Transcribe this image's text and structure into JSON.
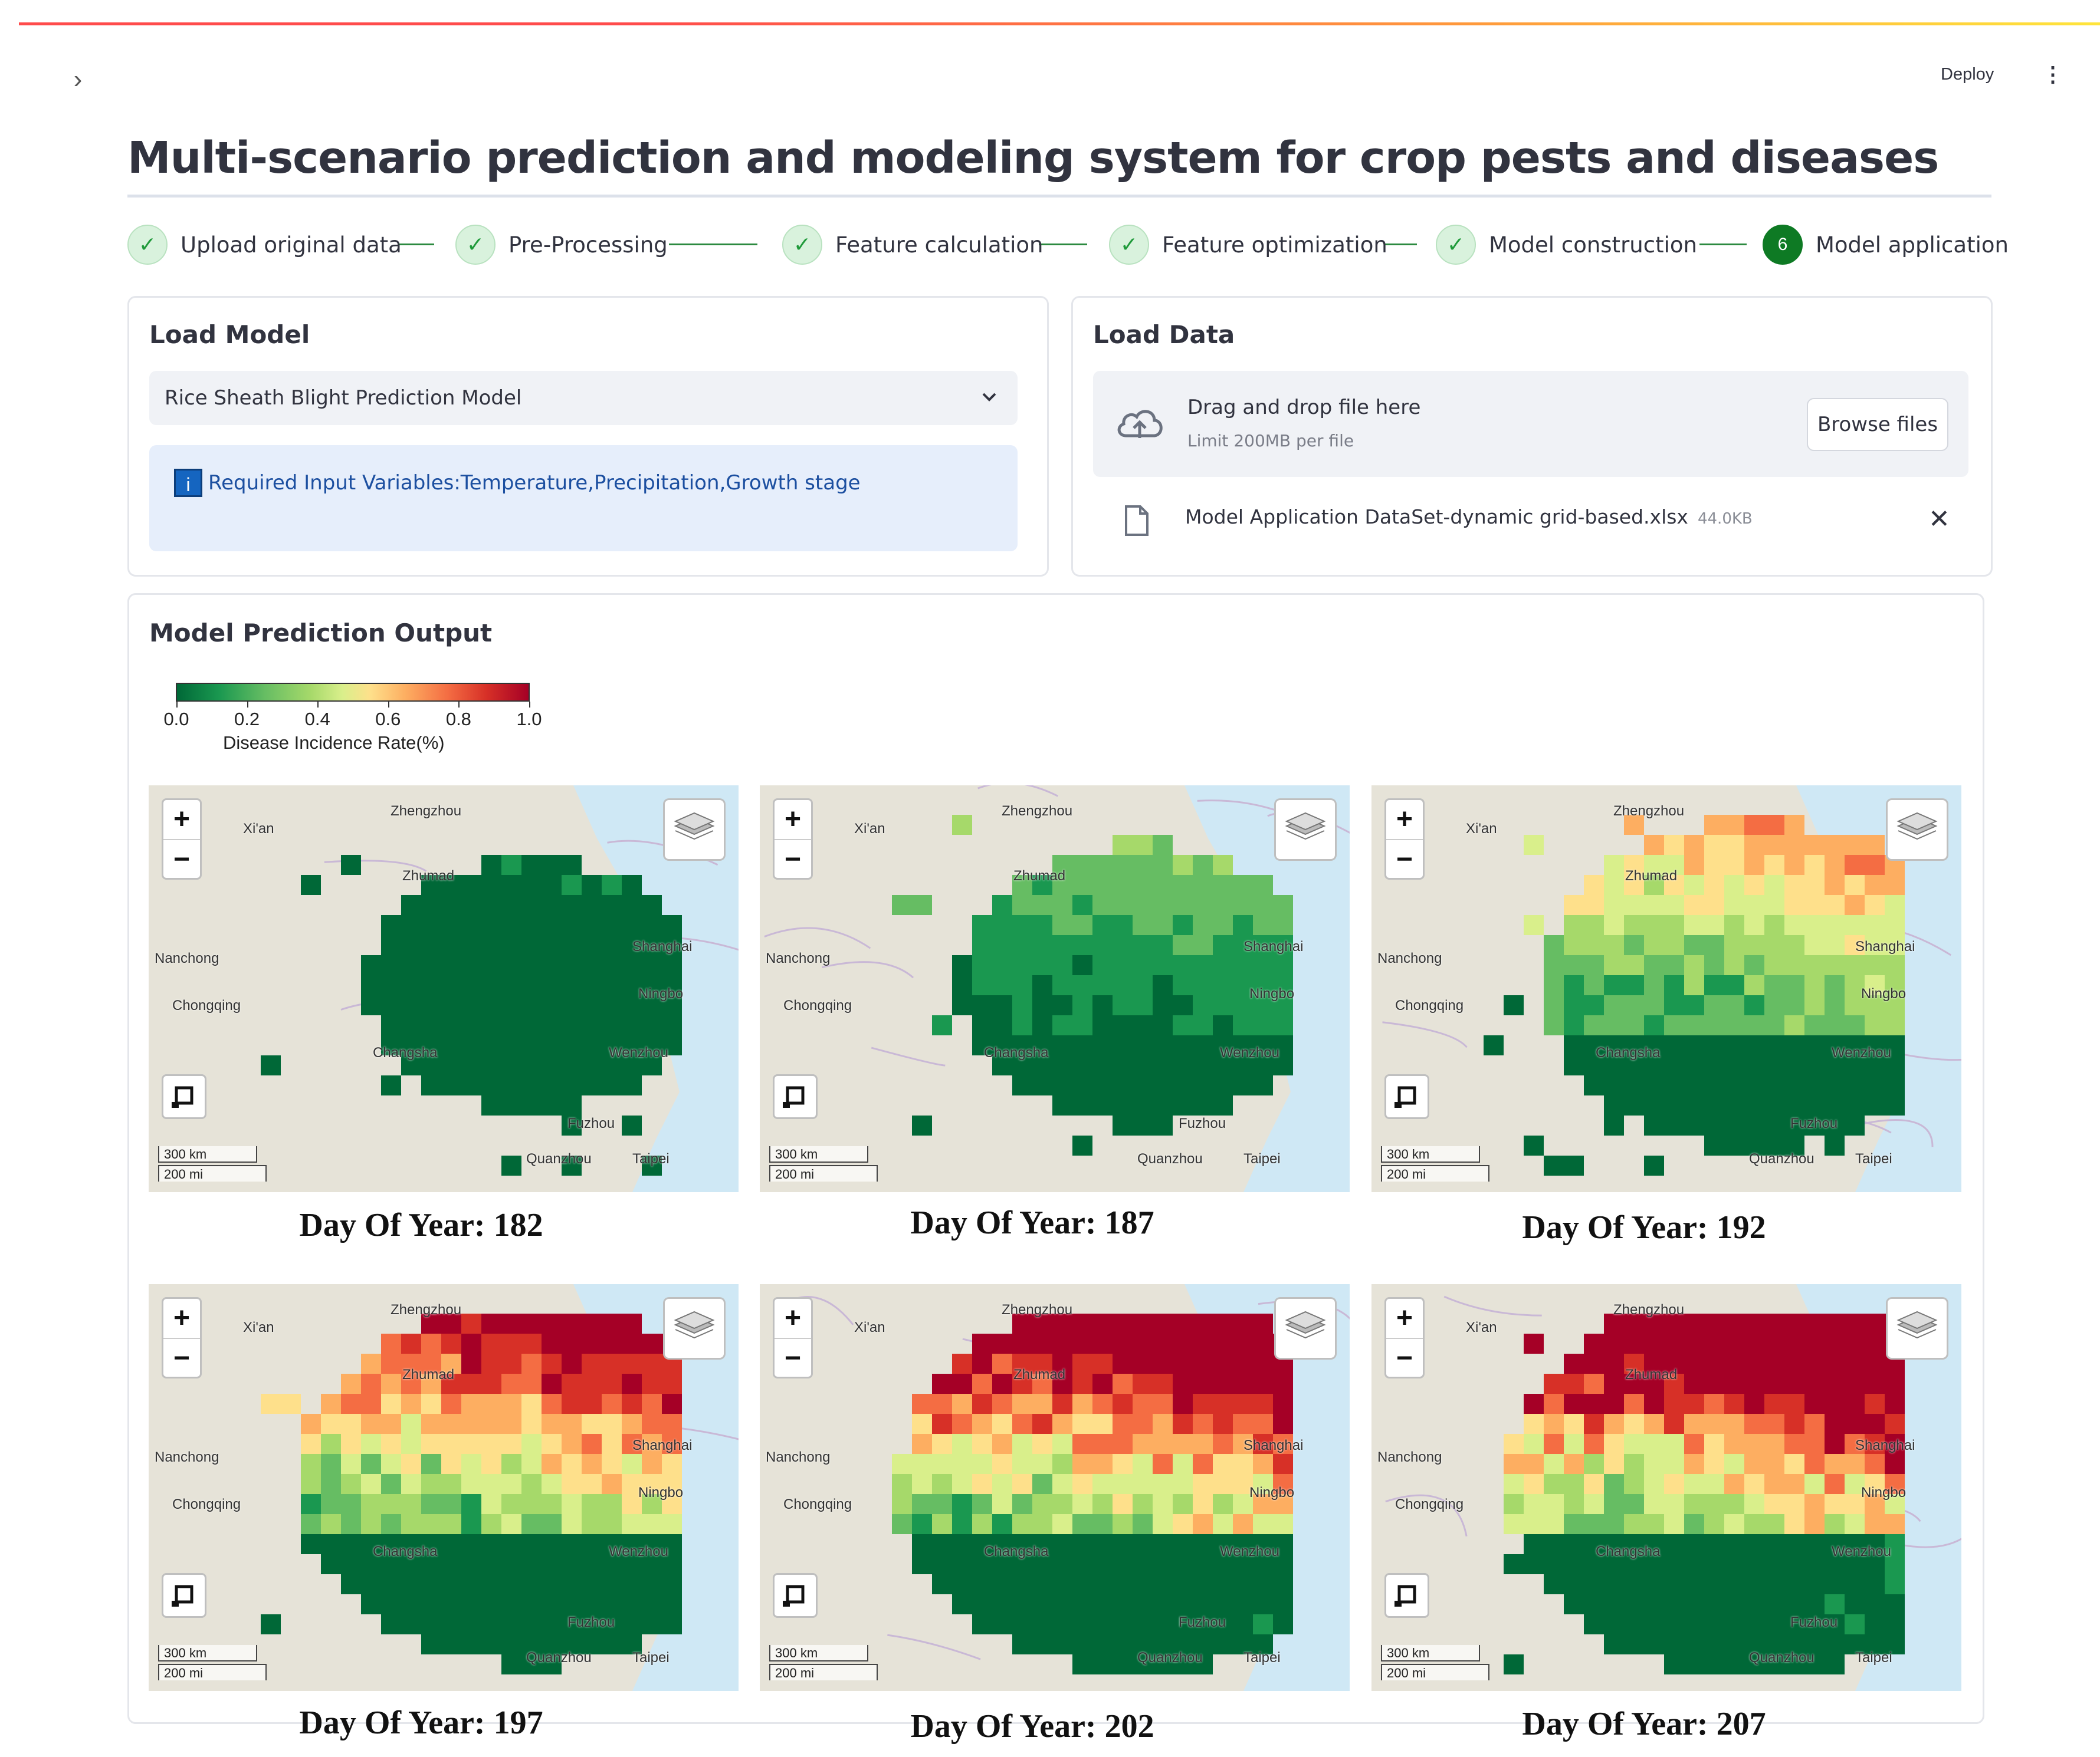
{
  "header": {
    "deploy_label": "Deploy",
    "menu_icon": "kebab-menu-icon",
    "sidebar_toggle_icon": "chevron-right-icon"
  },
  "page_title": "Multi-scenario prediction and modeling system for crop pests and diseases",
  "stepper": {
    "steps": [
      {
        "label": "Upload original data",
        "state": "done",
        "icon": "check-icon"
      },
      {
        "label": "Pre-Processing",
        "state": "done",
        "icon": "check-icon"
      },
      {
        "label": "Feature calculation",
        "state": "done",
        "icon": "check-icon"
      },
      {
        "label": "Feature optimization",
        "state": "done",
        "icon": "check-icon"
      },
      {
        "label": "Model construction",
        "state": "done",
        "icon": "check-icon"
      },
      {
        "label": "Model application",
        "state": "active",
        "number": "6"
      }
    ]
  },
  "load_model": {
    "title": "Load Model",
    "selected_model": "Rice Sheath Blight Prediction Model",
    "info_icon": "i",
    "info_text": "Required Input Variables:Temperature,Precipitation,Growth stage"
  },
  "load_data": {
    "title": "Load Data",
    "drop_title": "Drag and drop file here",
    "drop_limit": "Limit 200MB per file",
    "browse_label": "Browse files",
    "file_name": "Model Application DataSet-dynamic grid-based.xlsx",
    "file_size": "44.0KB"
  },
  "output": {
    "title": "Model Prediction Output",
    "legend": {
      "ticks": [
        "0.0",
        "0.2",
        "0.4",
        "0.6",
        "0.8",
        "1.0"
      ],
      "title": "Disease Incidence Rate(%)",
      "colors": [
        "#006837",
        "#1a9850",
        "#66bd63",
        "#a6d96a",
        "#d9ef8b",
        "#fee08b",
        "#fdae61",
        "#f46d43",
        "#d73027",
        "#a50026"
      ]
    },
    "map_controls": {
      "zoom_in": "+",
      "zoom_out": "−",
      "scale_km": "300 km",
      "scale_mi": "200 mi"
    },
    "city_labels": [
      "Zhengzhou",
      "Xi'an",
      "Zhumad",
      "Nanchong",
      "Chongqing",
      "Changsha",
      "Shanghai",
      "Ningbo",
      "Wenzhou",
      "Fuzhou",
      "Quanzhou",
      "Taipei"
    ],
    "maps": [
      {
        "caption": "Day Of  Year: 182",
        "severity": 0.08
      },
      {
        "caption": "Day Of  Year: 187",
        "severity": 0.22
      },
      {
        "caption": "Day Of  Year: 192",
        "severity": 0.5
      },
      {
        "caption": "Day Of  Year: 197",
        "severity": 0.75
      },
      {
        "caption": "Day Of  Year: 202",
        "severity": 0.88
      },
      {
        "caption": "Day Of  Year: 207",
        "severity": 0.95
      }
    ]
  }
}
